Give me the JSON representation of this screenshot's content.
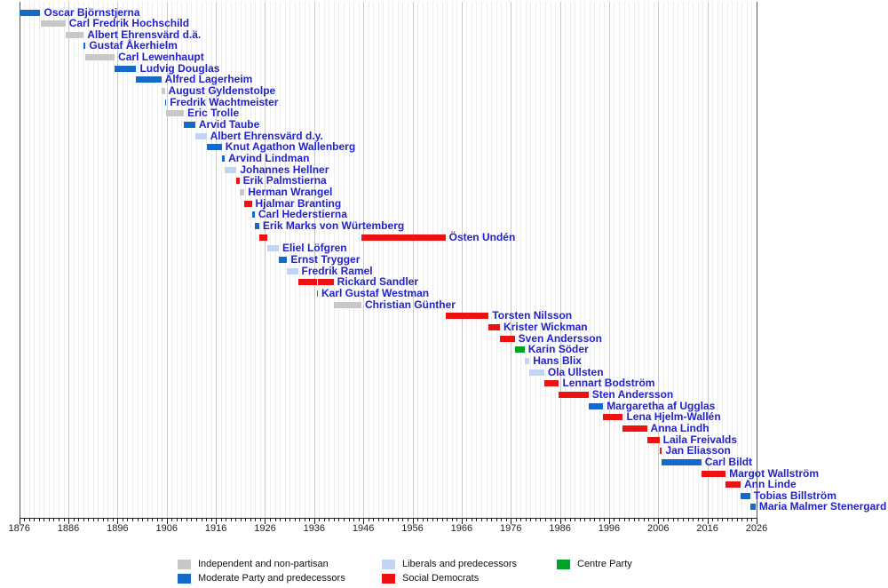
{
  "chart_data": {
    "type": "bar",
    "variant": "timeline-gantt",
    "description": "Timeline of office holders with party-coloured term bars",
    "x_axis": {
      "min": 1876,
      "max": 2026,
      "tick_interval": 10,
      "minor_tick_interval": 1,
      "tick_labels": [
        "1876",
        "1886",
        "1896",
        "1906",
        "1916",
        "1926",
        "1936",
        "1946",
        "1956",
        "1966",
        "1976",
        "1986",
        "1996",
        "2006",
        "2016",
        "2026"
      ]
    },
    "colors": {
      "independent": "#c8c8c8",
      "moderate": "#1569c9",
      "liberal": "#c3d3f2",
      "social_democrat": "#ee1111",
      "centre": "#00a327",
      "label_link": "#2222cc"
    },
    "legend": [
      {
        "key": "independent",
        "label": "Independent and non-partisan"
      },
      {
        "key": "moderate",
        "label": "Moderate Party and predecessors"
      },
      {
        "key": "liberal",
        "label": "Liberals and predecessors"
      },
      {
        "key": "social_democrat",
        "label": "Social Democrats"
      },
      {
        "key": "centre",
        "label": "Centre Party"
      }
    ],
    "rows": [
      {
        "name": "Oscar Björnstjerna",
        "party": "moderate",
        "segments": [
          [
            1876.0,
            1880.3
          ]
        ]
      },
      {
        "name": "Carl Fredrik Hochschild",
        "party": "independent",
        "segments": [
          [
            1880.3,
            1885.4
          ]
        ]
      },
      {
        "name": "Albert Ehrensvärd d.ä.",
        "party": "independent",
        "segments": [
          [
            1885.4,
            1889.1
          ]
        ]
      },
      {
        "name": "Gustaf Åkerhielm",
        "party": "moderate",
        "segments": [
          [
            1889.1,
            1889.5
          ]
        ]
      },
      {
        "name": "Carl Lewenhaupt",
        "party": "independent",
        "segments": [
          [
            1889.5,
            1895.4
          ]
        ]
      },
      {
        "name": "Ludvig Douglas",
        "party": "moderate",
        "segments": [
          [
            1895.4,
            1899.8
          ]
        ]
      },
      {
        "name": "Alfred Lagerheim",
        "party": "moderate",
        "segments": [
          [
            1899.8,
            1904.9
          ]
        ]
      },
      {
        "name": "August Gyldenstolpe",
        "party": "independent",
        "segments": [
          [
            1904.9,
            1905.6
          ]
        ]
      },
      {
        "name": "Fredrik Wachtmeister",
        "party": "moderate",
        "segments": [
          [
            1905.6,
            1905.9
          ]
        ]
      },
      {
        "name": "Eric Trolle",
        "party": "independent",
        "segments": [
          [
            1905.9,
            1909.5
          ]
        ]
      },
      {
        "name": "Arvid Taube",
        "party": "moderate",
        "segments": [
          [
            1909.5,
            1911.8
          ]
        ]
      },
      {
        "name": "Albert Ehrensvärd d.y.",
        "party": "liberal",
        "segments": [
          [
            1911.8,
            1914.1
          ]
        ]
      },
      {
        "name": "Knut Agathon Wallenberg",
        "party": "moderate",
        "segments": [
          [
            1914.1,
            1917.2
          ]
        ]
      },
      {
        "name": "Arvind Lindman",
        "party": "moderate",
        "segments": [
          [
            1917.2,
            1917.8
          ]
        ]
      },
      {
        "name": "Johannes Hellner",
        "party": "liberal",
        "segments": [
          [
            1917.8,
            1920.2
          ]
        ]
      },
      {
        "name": "Erik Palmstierna",
        "party": "social_democrat",
        "segments": [
          [
            1920.2,
            1920.8
          ]
        ]
      },
      {
        "name": "Herman Wrangel",
        "party": "independent",
        "segments": [
          [
            1920.8,
            1921.8
          ]
        ]
      },
      {
        "name": "Hjalmar Branting",
        "party": "social_democrat",
        "segments": [
          [
            1921.8,
            1923.3
          ]
        ]
      },
      {
        "name": "Carl Hederstierna",
        "party": "moderate",
        "segments": [
          [
            1923.3,
            1923.9
          ]
        ]
      },
      {
        "name": "Erik Marks von Würtemberg",
        "party": "moderate",
        "segments": [
          [
            1923.9,
            1924.8
          ]
        ]
      },
      {
        "name": "Östen Undén",
        "party": "social_democrat",
        "segments": [
          [
            1924.8,
            1926.5
          ],
          [
            1945.6,
            1962.7
          ]
        ]
      },
      {
        "name": "Eliel Löfgren",
        "party": "liberal",
        "segments": [
          [
            1926.5,
            1928.8
          ]
        ]
      },
      {
        "name": "Ernst Trygger",
        "party": "moderate",
        "segments": [
          [
            1928.8,
            1930.5
          ]
        ]
      },
      {
        "name": "Fredrik Ramel",
        "party": "liberal",
        "segments": [
          [
            1930.5,
            1932.7
          ]
        ]
      },
      {
        "name": "Rickard Sandler",
        "party": "social_democrat",
        "segments": [
          [
            1932.7,
            1936.5
          ],
          [
            1936.75,
            1939.95
          ]
        ]
      },
      {
        "name": "Karl Gustaf Westman",
        "party": "centre",
        "segments": [
          [
            1936.5,
            1936.75
          ]
        ]
      },
      {
        "name": "Christian Günther",
        "party": "independent",
        "segments": [
          [
            1939.95,
            1945.6
          ]
        ]
      },
      {
        "name": "Torsten Nilsson",
        "party": "social_democrat",
        "segments": [
          [
            1962.7,
            1971.5
          ]
        ]
      },
      {
        "name": "Krister Wickman",
        "party": "social_democrat",
        "segments": [
          [
            1971.5,
            1973.8
          ]
        ]
      },
      {
        "name": "Sven Andersson",
        "party": "social_democrat",
        "segments": [
          [
            1973.8,
            1976.8
          ]
        ]
      },
      {
        "name": "Karin Söder",
        "party": "centre",
        "segments": [
          [
            1976.8,
            1978.8
          ]
        ]
      },
      {
        "name": "Hans Blix",
        "party": "liberal",
        "segments": [
          [
            1978.8,
            1979.8
          ]
        ]
      },
      {
        "name": "Ola Ullsten",
        "party": "liberal",
        "segments": [
          [
            1979.8,
            1982.8
          ]
        ]
      },
      {
        "name": "Lennart Bodström",
        "party": "social_democrat",
        "segments": [
          [
            1982.8,
            1985.8
          ]
        ]
      },
      {
        "name": "Sten Andersson",
        "party": "social_democrat",
        "segments": [
          [
            1985.8,
            1991.8
          ]
        ]
      },
      {
        "name": "Margaretha af Ugglas",
        "party": "moderate",
        "segments": [
          [
            1991.8,
            1994.8
          ]
        ]
      },
      {
        "name": "Lena Hjelm-Wallén",
        "party": "social_democrat",
        "segments": [
          [
            1994.8,
            1998.8
          ]
        ]
      },
      {
        "name": "Anna Lindh",
        "party": "social_democrat",
        "segments": [
          [
            1998.8,
            2003.7
          ]
        ]
      },
      {
        "name": "Laila Freivalds",
        "party": "social_democrat",
        "segments": [
          [
            2003.7,
            2006.25
          ]
        ]
      },
      {
        "name": "Jan Eliasson",
        "party": "social_democrat",
        "segments": [
          [
            2006.3,
            2006.75
          ]
        ]
      },
      {
        "name": "Carl Bildt",
        "party": "moderate",
        "segments": [
          [
            2006.75,
            2014.75
          ]
        ]
      },
      {
        "name": "Margot Wallström",
        "party": "social_democrat",
        "segments": [
          [
            2014.75,
            2019.7
          ]
        ]
      },
      {
        "name": "Ann Linde",
        "party": "social_democrat",
        "segments": [
          [
            2019.7,
            2022.75
          ]
        ]
      },
      {
        "name": "Tobias Billström",
        "party": "moderate",
        "segments": [
          [
            2022.75,
            2024.7
          ]
        ]
      },
      {
        "name": "Maria Malmer Stenergard",
        "party": "moderate",
        "segments": [
          [
            2024.7,
            2025.8
          ]
        ]
      }
    ]
  }
}
